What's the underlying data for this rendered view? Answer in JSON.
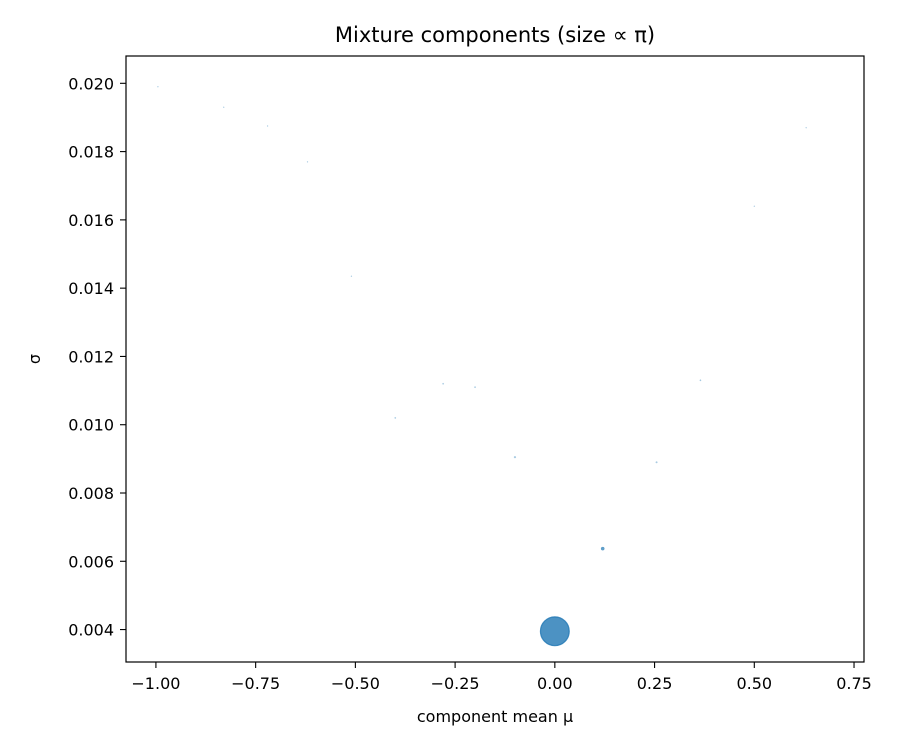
{
  "chart_data": {
    "type": "scatter",
    "title": "Mixture components (size ∝ π)",
    "xlabel": "component mean μ",
    "ylabel": "σ",
    "xlim": [
      -1.075,
      0.775
    ],
    "ylim": [
      0.00305,
      0.0208
    ],
    "xticks": [
      -1.0,
      -0.75,
      -0.5,
      -0.25,
      0.0,
      0.25,
      0.5,
      0.75
    ],
    "xtick_labels": [
      "−1.00",
      "−0.75",
      "−0.50",
      "−0.25",
      "0.00",
      "0.25",
      "0.50",
      "0.75"
    ],
    "yticks": [
      0.004,
      0.006,
      0.008,
      0.01,
      0.012,
      0.014,
      0.016,
      0.018,
      0.02
    ],
    "ytick_labels": [
      "0.004",
      "0.006",
      "0.008",
      "0.010",
      "0.012",
      "0.014",
      "0.016",
      "0.018",
      "0.020"
    ],
    "grid": false,
    "marker_color": "#1f77b4",
    "points": [
      {
        "mu": 0.0,
        "sigma": 0.00395,
        "pi": 0.93
      },
      {
        "mu": 0.12,
        "sigma": 0.00637,
        "pi": 0.012
      },
      {
        "mu": -0.1,
        "sigma": 0.00905,
        "pi": 0.004
      },
      {
        "mu": 0.255,
        "sigma": 0.0089,
        "pi": 0.003
      },
      {
        "mu": -0.4,
        "sigma": 0.0102,
        "pi": 0.002
      },
      {
        "mu": -0.28,
        "sigma": 0.0112,
        "pi": 0.002
      },
      {
        "mu": -0.2,
        "sigma": 0.0111,
        "pi": 0.002
      },
      {
        "mu": 0.365,
        "sigma": 0.0113,
        "pi": 0.002
      },
      {
        "mu": -0.51,
        "sigma": 0.01435,
        "pi": 0.001
      },
      {
        "mu": 0.5,
        "sigma": 0.0164,
        "pi": 0.001
      },
      {
        "mu": -0.62,
        "sigma": 0.0177,
        "pi": 0.001
      },
      {
        "mu": -0.72,
        "sigma": 0.01875,
        "pi": 0.001
      },
      {
        "mu": 0.63,
        "sigma": 0.0187,
        "pi": 0.001
      },
      {
        "mu": -0.83,
        "sigma": 0.0193,
        "pi": 0.0008
      },
      {
        "mu": -0.995,
        "sigma": 0.0199,
        "pi": 0.0008
      }
    ]
  }
}
